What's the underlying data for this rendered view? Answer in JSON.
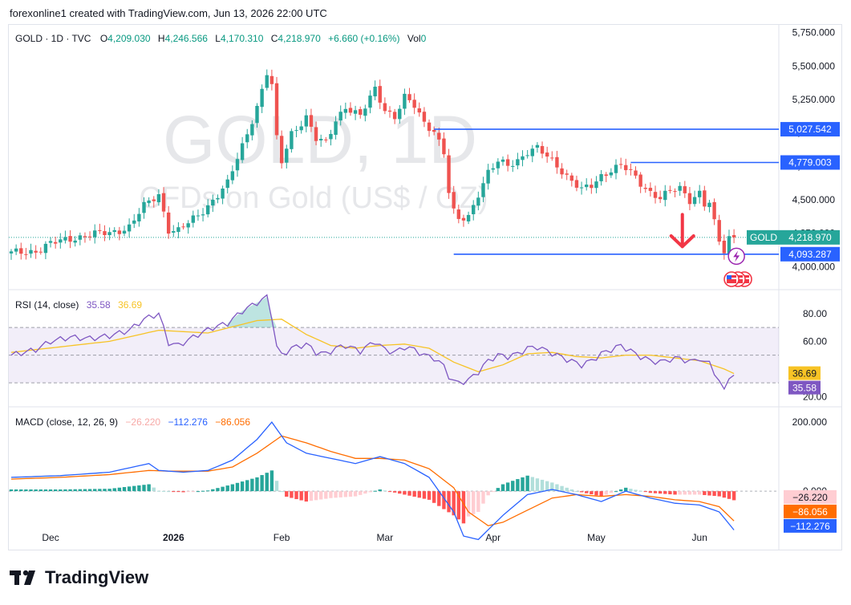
{
  "header": {
    "text": "forexonline1 created with TradingView.com, Jun 13, 2026 22:00 UTC"
  },
  "footer": {
    "brand": "TradingView",
    "logo_icon": "tradingview-logo-icon"
  },
  "legend": {
    "symbol": "GOLD · 1D · TVC",
    "o_label": "O",
    "o": "4,209.030",
    "h_label": "H",
    "h": "4,246.566",
    "l_label": "L",
    "l": "4,170.310",
    "c_label": "C",
    "c": "4,218.970",
    "change": "+6.660 (+0.16%)",
    "vol": "Vol",
    "vol_value": "0"
  },
  "watermark": {
    "line1": "GOLD, 1D",
    "line2": "CFDs on Gold (US$ / OZ)"
  },
  "colors": {
    "up": "#26a69a",
    "down": "#ef5350",
    "blue": "#2962ff",
    "rsi": "#7e57c2",
    "rsi_ma": "#f7c325",
    "macd": "#2962ff",
    "signal": "#ff6d00"
  },
  "chart_data": [
    {
      "type": "candlestick",
      "name": "GOLD 1D",
      "ylim": [
        3900,
        5760
      ],
      "y_ticks": [
        "5,750.000",
        "5,500.000",
        "5,250.000",
        "5,000.000",
        "4,750.000",
        "4,500.000",
        "4,250.000",
        "4,000.000"
      ],
      "y_tick_values": [
        5750,
        5500,
        5250,
        5000,
        4750,
        4500,
        4250,
        4000
      ],
      "x_ticks": [
        "Dec",
        "2026",
        "Feb",
        "Mar",
        "Apr",
        "May",
        "Jun"
      ],
      "x_tick_days": [
        8,
        33,
        55,
        76,
        98,
        119,
        140
      ],
      "horizontal_lines": [
        {
          "value": 5027.542,
          "label": "5,027.542",
          "start_day": 86
        },
        {
          "value": 4779.003,
          "label": "4,779.003",
          "start_day": 126
        },
        {
          "value": 4093.287,
          "label": "4,093.287",
          "start_day": 90
        }
      ],
      "last_price": {
        "symbol": "GOLD",
        "label": "4,218.970",
        "value": 4218.97
      },
      "annotations": [
        "down-arrow-icon",
        "flash-icon",
        "us-flag-icon"
      ],
      "anchors": [
        [
          0,
          4100
        ],
        [
          5,
          4120
        ],
        [
          8,
          4170
        ],
        [
          12,
          4210
        ],
        [
          16,
          4240
        ],
        [
          20,
          4250
        ],
        [
          24,
          4300
        ],
        [
          27,
          4450
        ],
        [
          30,
          4540
        ],
        [
          32,
          4280
        ],
        [
          34,
          4270
        ],
        [
          38,
          4380
        ],
        [
          41,
          4500
        ],
        [
          44,
          4620
        ],
        [
          47,
          4900
        ],
        [
          50,
          5200
        ],
        [
          52,
          5450
        ],
        [
          53,
          5350
        ],
        [
          54,
          4950
        ],
        [
          55,
          4780
        ],
        [
          57,
          5000
        ],
        [
          60,
          5120
        ],
        [
          62,
          4950
        ],
        [
          64,
          4920
        ],
        [
          66,
          5100
        ],
        [
          68,
          5200
        ],
        [
          71,
          5120
        ],
        [
          74,
          5330
        ],
        [
          76,
          5180
        ],
        [
          78,
          5120
        ],
        [
          80,
          5260
        ],
        [
          82,
          5200
        ],
        [
          84,
          5080
        ],
        [
          86,
          5020
        ],
        [
          88,
          4850
        ],
        [
          89,
          4550
        ],
        [
          90,
          4400
        ],
        [
          91,
          4350
        ],
        [
          93,
          4380
        ],
        [
          95,
          4550
        ],
        [
          97,
          4700
        ],
        [
          99,
          4780
        ],
        [
          101,
          4760
        ],
        [
          103,
          4800
        ],
        [
          105,
          4860
        ],
        [
          107,
          4880
        ],
        [
          109,
          4820
        ],
        [
          111,
          4760
        ],
        [
          113,
          4680
        ],
        [
          116,
          4570
        ],
        [
          118,
          4600
        ],
        [
          120,
          4680
        ],
        [
          122,
          4730
        ],
        [
          124,
          4760
        ],
        [
          126,
          4700
        ],
        [
          128,
          4620
        ],
        [
          130,
          4560
        ],
        [
          132,
          4520
        ],
        [
          134,
          4560
        ],
        [
          136,
          4580
        ],
        [
          138,
          4500
        ],
        [
          140,
          4560
        ],
        [
          141,
          4470
        ],
        [
          142,
          4480
        ],
        [
          143,
          4320
        ],
        [
          144,
          4180
        ],
        [
          145,
          4110
        ],
        [
          146,
          4212
        ],
        [
          147,
          4219
        ]
      ]
    },
    {
      "type": "line",
      "name": "RSI",
      "title": "RSI (14, close)",
      "value_rsi": "35.58",
      "value_ma": "36.69",
      "ylim": [
        15,
        95
      ],
      "y_ticks": [
        "80.00",
        "60.00",
        "20.00"
      ],
      "y_tick_values": [
        80,
        60,
        20
      ],
      "band": [
        30,
        70
      ],
      "mid": 50,
      "rsi_anchors": [
        [
          0,
          50
        ],
        [
          5,
          54
        ],
        [
          8,
          60
        ],
        [
          12,
          63
        ],
        [
          16,
          62
        ],
        [
          20,
          64
        ],
        [
          24,
          68
        ],
        [
          27,
          76
        ],
        [
          30,
          80
        ],
        [
          32,
          59
        ],
        [
          34,
          57
        ],
        [
          38,
          65
        ],
        [
          41,
          70
        ],
        [
          44,
          73
        ],
        [
          47,
          82
        ],
        [
          50,
          88
        ],
        [
          52,
          92
        ],
        [
          53,
          78
        ],
        [
          54,
          56
        ],
        [
          55,
          50
        ],
        [
          57,
          55
        ],
        [
          60,
          58
        ],
        [
          62,
          52
        ],
        [
          64,
          51
        ],
        [
          66,
          55
        ],
        [
          68,
          57
        ],
        [
          71,
          53
        ],
        [
          74,
          60
        ],
        [
          76,
          54
        ],
        [
          78,
          52
        ],
        [
          80,
          56
        ],
        [
          82,
          54
        ],
        [
          84,
          50
        ],
        [
          86,
          48
        ],
        [
          88,
          42
        ],
        [
          89,
          35
        ],
        [
          90,
          31
        ],
        [
          91,
          30
        ],
        [
          93,
          32
        ],
        [
          95,
          38
        ],
        [
          97,
          46
        ],
        [
          99,
          50
        ],
        [
          101,
          49
        ],
        [
          103,
          51
        ],
        [
          105,
          55
        ],
        [
          107,
          56
        ],
        [
          109,
          53
        ],
        [
          111,
          50
        ],
        [
          113,
          47
        ],
        [
          116,
          43
        ],
        [
          118,
          46
        ],
        [
          120,
          51
        ],
        [
          122,
          54
        ],
        [
          124,
          57
        ],
        [
          126,
          53
        ],
        [
          128,
          49
        ],
        [
          130,
          46
        ],
        [
          132,
          45
        ],
        [
          134,
          47
        ],
        [
          136,
          48
        ],
        [
          138,
          45
        ],
        [
          140,
          48
        ],
        [
          141,
          44
        ],
        [
          142,
          45
        ],
        [
          143,
          38
        ],
        [
          144,
          30
        ],
        [
          145,
          25
        ],
        [
          146,
          35
        ],
        [
          147,
          35.58
        ]
      ],
      "ma_anchors": [
        [
          0,
          52
        ],
        [
          10,
          56
        ],
        [
          20,
          60
        ],
        [
          30,
          68
        ],
        [
          40,
          66
        ],
        [
          50,
          75
        ],
        [
          55,
          76
        ],
        [
          60,
          65
        ],
        [
          65,
          57
        ],
        [
          70,
          55
        ],
        [
          75,
          57
        ],
        [
          80,
          58
        ],
        [
          85,
          55
        ],
        [
          90,
          45
        ],
        [
          95,
          38
        ],
        [
          100,
          43
        ],
        [
          105,
          51
        ],
        [
          110,
          52
        ],
        [
          115,
          49
        ],
        [
          120,
          48
        ],
        [
          125,
          50
        ],
        [
          130,
          50
        ],
        [
          135,
          48
        ],
        [
          140,
          46
        ],
        [
          145,
          40
        ],
        [
          147,
          36.69
        ]
      ]
    },
    {
      "type": "line",
      "name": "MACD",
      "title": "MACD (close, 12, 26, 9)",
      "value_hist": "−26.220",
      "value_macd": "−112.276",
      "value_signal": "−86.056",
      "ylim": [
        -160,
        235
      ],
      "y_ticks": [
        "200.000",
        "0.000"
      ],
      "y_tick_values": [
        200,
        0
      ],
      "macd_anchors": [
        [
          0,
          40
        ],
        [
          10,
          45
        ],
        [
          20,
          55
        ],
        [
          28,
          80
        ],
        [
          30,
          60
        ],
        [
          35,
          55
        ],
        [
          40,
          60
        ],
        [
          45,
          90
        ],
        [
          50,
          150
        ],
        [
          53,
          200
        ],
        [
          56,
          140
        ],
        [
          60,
          110
        ],
        [
          65,
          95
        ],
        [
          70,
          80
        ],
        [
          75,
          100
        ],
        [
          80,
          80
        ],
        [
          85,
          40
        ],
        [
          90,
          -60
        ],
        [
          92,
          -130
        ],
        [
          95,
          -140
        ],
        [
          100,
          -70
        ],
        [
          105,
          -10
        ],
        [
          110,
          5
        ],
        [
          115,
          -10
        ],
        [
          120,
          -30
        ],
        [
          125,
          0
        ],
        [
          130,
          -20
        ],
        [
          135,
          -35
        ],
        [
          140,
          -40
        ],
        [
          144,
          -60
        ],
        [
          147,
          -112.276
        ]
      ],
      "signal_anchors": [
        [
          0,
          35
        ],
        [
          10,
          40
        ],
        [
          20,
          48
        ],
        [
          28,
          60
        ],
        [
          32,
          58
        ],
        [
          40,
          58
        ],
        [
          45,
          70
        ],
        [
          50,
          110
        ],
        [
          55,
          160
        ],
        [
          60,
          140
        ],
        [
          65,
          115
        ],
        [
          70,
          95
        ],
        [
          75,
          95
        ],
        [
          80,
          90
        ],
        [
          85,
          65
        ],
        [
          90,
          10
        ],
        [
          93,
          -60
        ],
        [
          97,
          -100
        ],
        [
          100,
          -90
        ],
        [
          105,
          -55
        ],
        [
          110,
          -20
        ],
        [
          115,
          -10
        ],
        [
          120,
          -15
        ],
        [
          125,
          -10
        ],
        [
          130,
          -15
        ],
        [
          135,
          -25
        ],
        [
          140,
          -30
        ],
        [
          144,
          -45
        ],
        [
          147,
          -86.056
        ]
      ]
    }
  ]
}
